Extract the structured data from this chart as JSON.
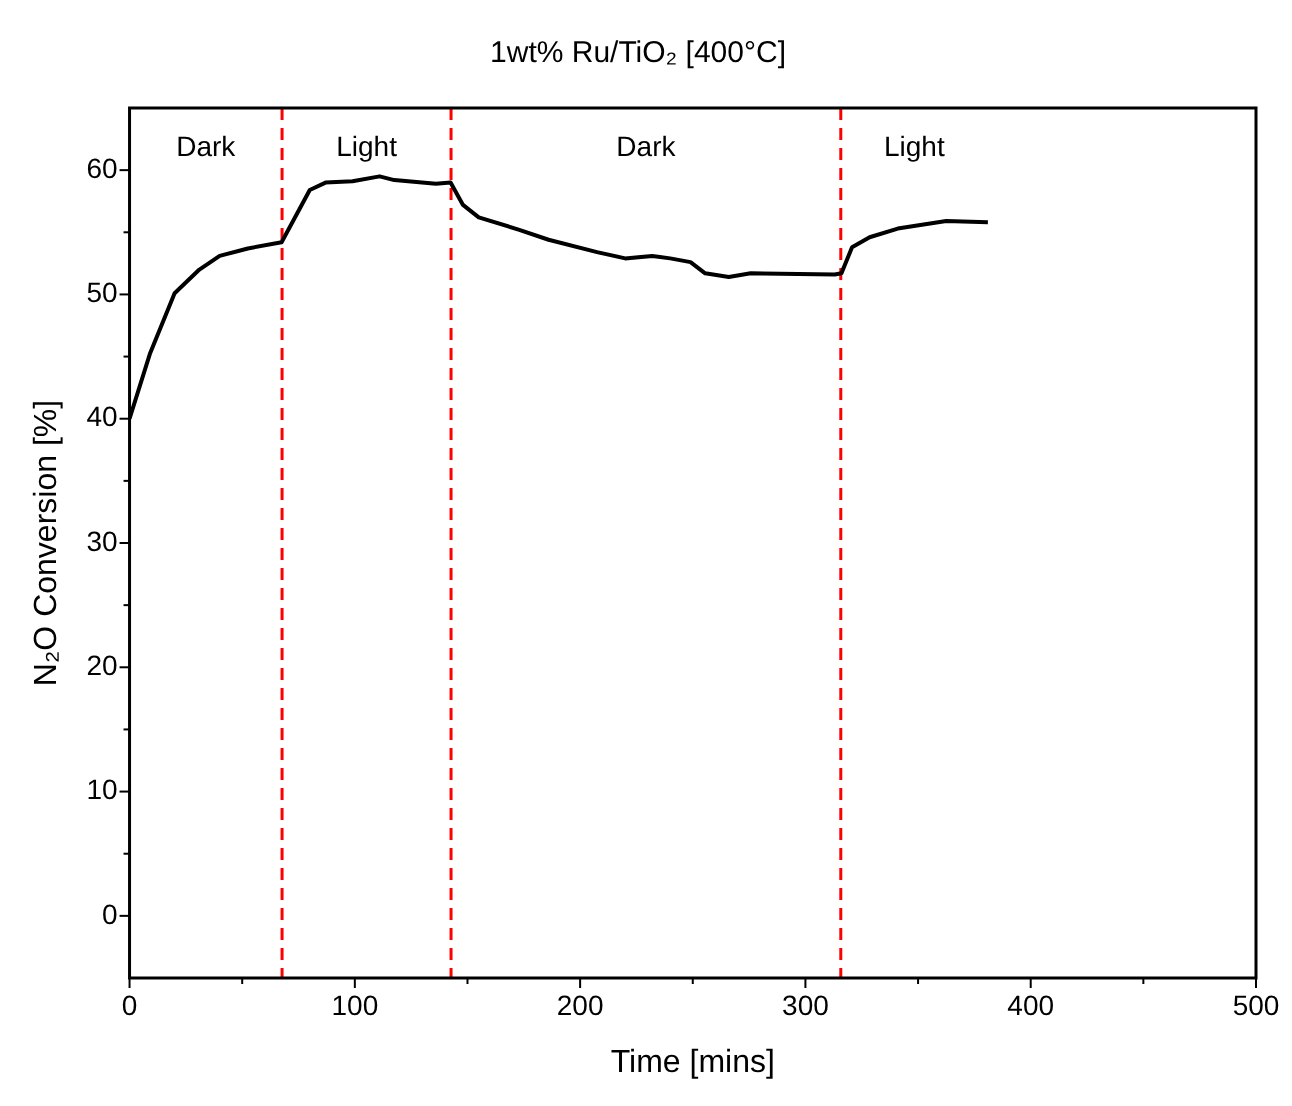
{
  "chart_data": {
    "type": "line",
    "title": "1wt% Ru/TiO₂ [400°C]",
    "xlabel": "Time [mins]",
    "ylabel": "N₂O Conversion [%]",
    "xlim": [
      0,
      500
    ],
    "ylim": [
      -5,
      65
    ],
    "xticks": [
      0,
      {
        "value": 50,
        "label": null
      },
      100,
      {
        "value": 150,
        "label": null
      },
      200,
      {
        "value": 250,
        "label": null
      },
      300,
      {
        "value": 350,
        "label": null
      },
      400,
      {
        "value": 450,
        "label": null
      },
      500
    ],
    "yticks": [
      0,
      {
        "value": 5,
        "label": null
      },
      10,
      {
        "value": 15,
        "label": null
      },
      20,
      {
        "value": 25,
        "label": null
      },
      30,
      {
        "value": 35,
        "label": null
      },
      40,
      {
        "value": 45,
        "label": null
      },
      50,
      {
        "value": 55,
        "label": null
      },
      60
    ],
    "grid": false,
    "legend": false,
    "marker": "none",
    "line_style": "solid",
    "series": [
      {
        "color": "#000000",
        "x": [
          0,
          9,
          20,
          31,
          40,
          52.5,
          67.5,
          80,
          87,
          99,
          111,
          117.5,
          136,
          142.5,
          148,
          155,
          173,
          186,
          207.5,
          220,
          232,
          240,
          249,
          255.5,
          266,
          275.7,
          313,
          316,
          320.7,
          328.5,
          341,
          362.5,
          381
        ],
        "values": [
          40.0,
          45.2,
          50.1,
          52.0,
          53.1,
          53.7,
          54.2,
          58.4,
          59.0,
          59.1,
          59.5,
          59.2,
          58.9,
          59.0,
          57.2,
          56.2,
          55.2,
          54.4,
          53.4,
          52.9,
          53.1,
          52.9,
          52.6,
          51.7,
          51.4,
          51.7,
          51.6,
          51.7,
          53.8,
          54.6,
          55.3,
          55.9,
          55.8
        ]
      }
    ],
    "ref_lines": [
      {
        "axis": "x",
        "value": 67.7,
        "color": "#ff0000",
        "line_style": "dashed"
      },
      {
        "axis": "x",
        "value": 142.7,
        "color": "#ff0000",
        "line_style": "dashed"
      },
      {
        "axis": "x",
        "value": 315.7,
        "color": "#ff0000",
        "line_style": "dashed"
      }
    ],
    "annotations": [
      "Dark",
      "Light",
      "Dark",
      "Light"
    ]
  }
}
